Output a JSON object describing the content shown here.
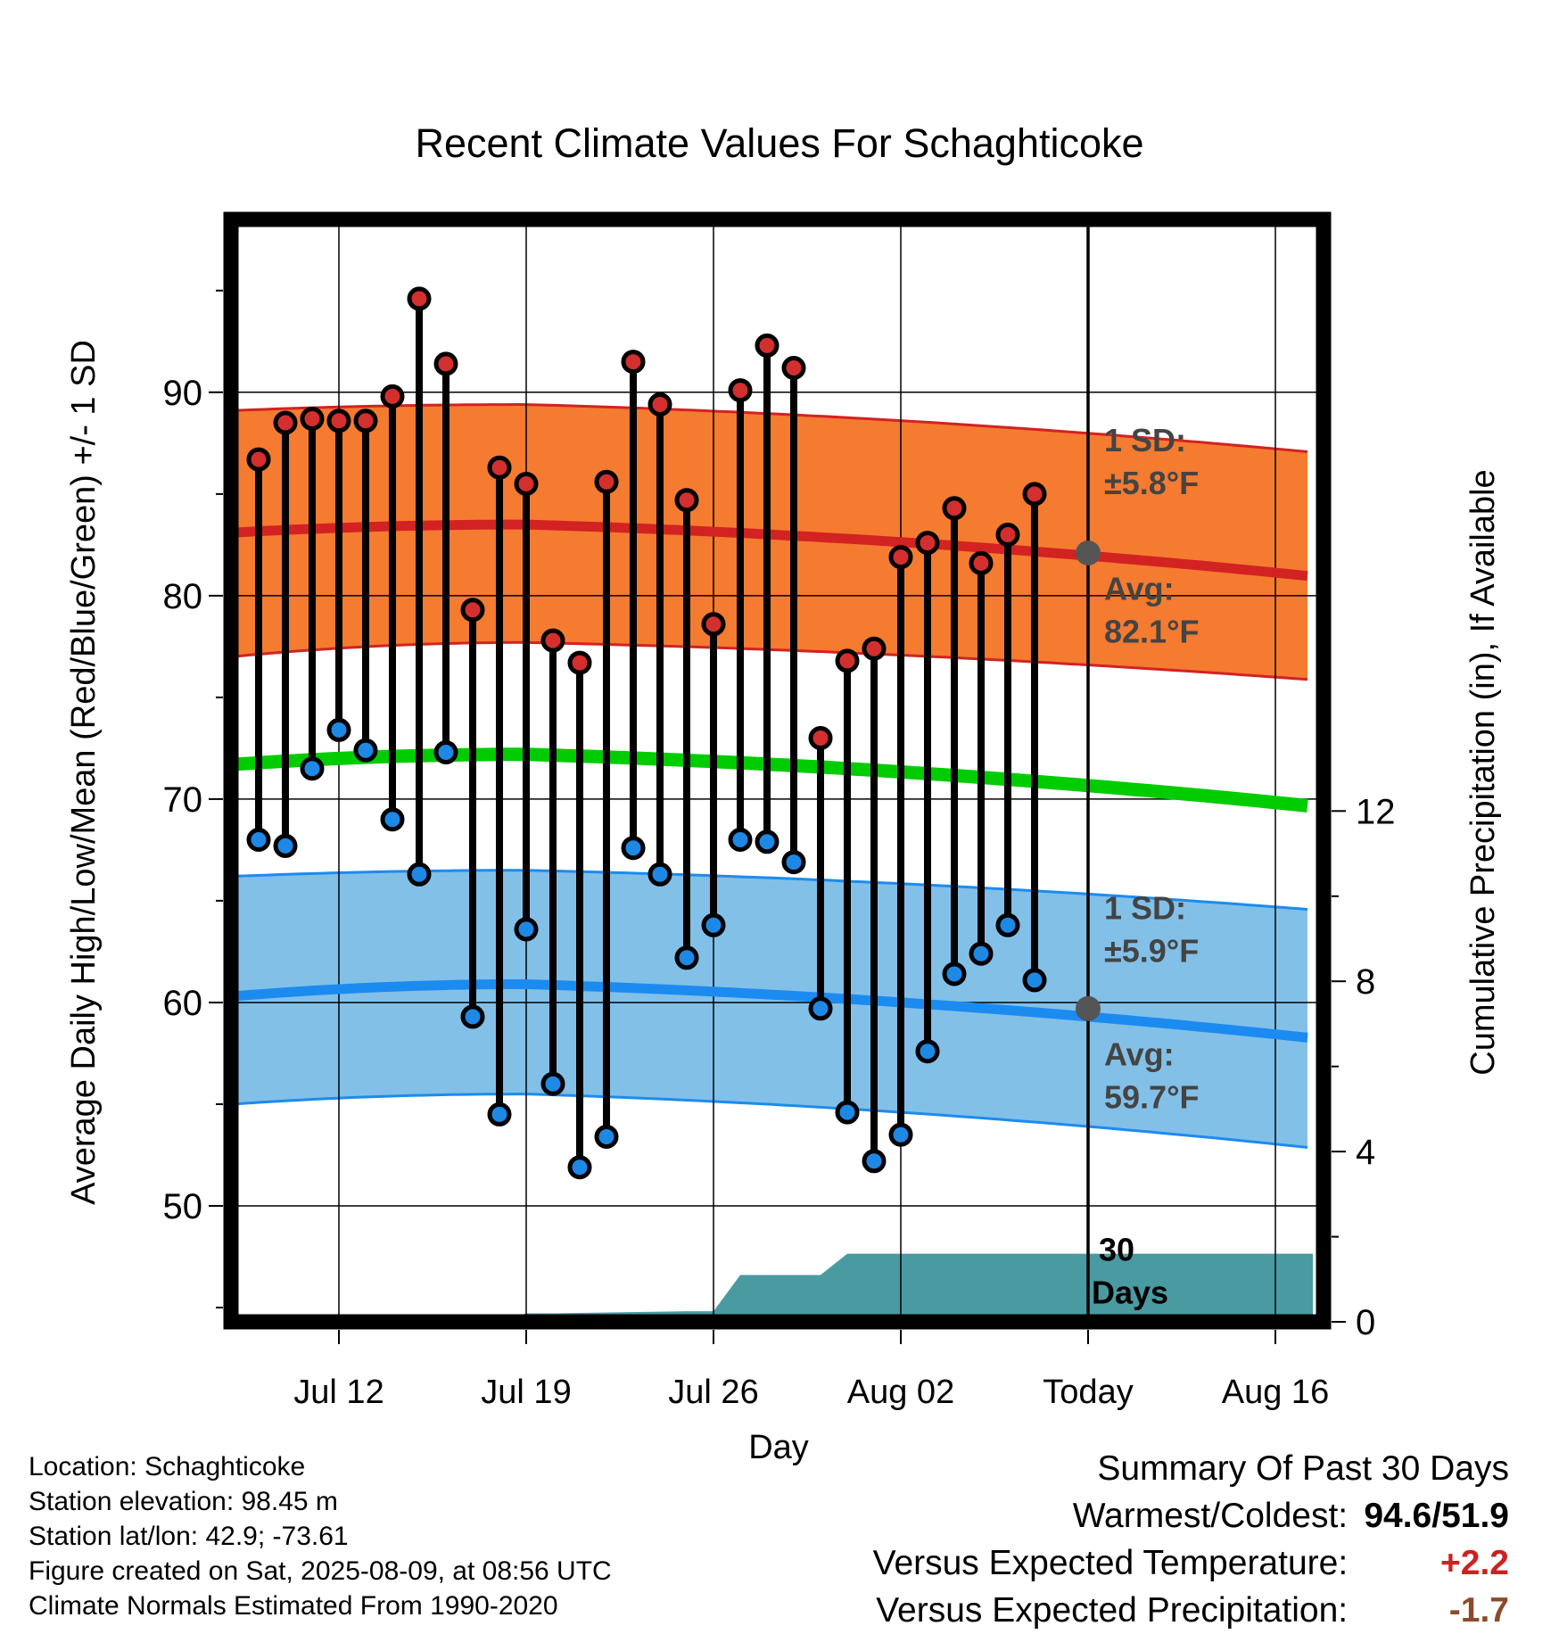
{
  "chart_data": {
    "type": "line",
    "title": "Recent Climate Values For Schaghticoke",
    "xlabel": "Day",
    "ylabel": "Average Daily High/Low/Mean (Red/Blue/Green) +/- 1 SD",
    "y2label": "Cumulative Precipitation (in), If Available",
    "x_start": "Jul 09",
    "x_end": "Aug 20",
    "x_ticks": [
      {
        "day": 3,
        "label": "Jul 12"
      },
      {
        "day": 10,
        "label": "Jul 19"
      },
      {
        "day": 17,
        "label": "Jul 26"
      },
      {
        "day": 24,
        "label": "Aug 02"
      },
      {
        "day": 31,
        "label": "Today"
      },
      {
        "day": 38,
        "label": "Aug 16"
      }
    ],
    "ylim": [
      44.3,
      98.5
    ],
    "y_ticks": [
      50,
      60,
      70,
      80,
      90
    ],
    "y2lim": [
      0,
      25.9
    ],
    "y2_ticks": [
      0,
      4,
      8,
      12
    ],
    "today_day": 31,
    "grid": true,
    "highs": [
      86.7,
      88.5,
      88.7,
      88.6,
      88.6,
      89.8,
      94.6,
      91.4,
      79.3,
      86.3,
      85.5,
      77.8,
      76.7,
      85.6,
      91.5,
      89.4,
      84.7,
      78.6,
      90.1,
      92.3,
      91.2,
      73.0,
      76.8,
      77.4,
      81.9,
      82.6,
      84.3,
      81.6,
      83.0,
      85.0
    ],
    "lows": [
      68.0,
      67.7,
      71.5,
      73.4,
      72.4,
      69.0,
      66.3,
      72.3,
      59.3,
      54.5,
      63.6,
      56.0,
      51.9,
      53.4,
      67.6,
      66.3,
      62.2,
      63.8,
      68.0,
      67.9,
      66.9,
      59.7,
      54.6,
      52.2,
      53.5,
      57.6,
      61.4,
      62.4,
      63.8,
      61.1
    ],
    "normal_high": {
      "start": 83.1,
      "peak": 83.5,
      "today": 82.1,
      "end": 81.0
    },
    "normal_high_sd": {
      "plus_start": 89.1,
      "plus_peak": 89.4,
      "plus_end": 87.1,
      "minus_start": 77.0,
      "minus_peak": 77.7,
      "minus_end": 75.9
    },
    "normal_low": {
      "start": 60.3,
      "peak": 60.9,
      "today": 59.7,
      "end": 58.3
    },
    "normal_low_sd": {
      "plus_start": 66.2,
      "plus_peak": 66.5,
      "plus_end": 64.6,
      "minus_start": 55.0,
      "minus_peak": 55.5,
      "minus_end": 52.9
    },
    "normal_mean": {
      "start": 71.7,
      "peak": 72.2,
      "end": 69.7
    },
    "precip_cumulative": {
      "days": [
        0,
        9,
        10,
        11,
        16,
        17,
        18,
        21,
        22,
        23,
        39
      ],
      "values": [
        0.0,
        0.0,
        0.2,
        0.2,
        0.25,
        0.25,
        1.1,
        1.1,
        1.6,
        1.6,
        1.6
      ]
    },
    "annotations": {
      "high_sd_label": "1 SD:",
      "high_sd_value": "±5.8°F",
      "high_avg_label": "Avg:",
      "high_avg_value": "82.1°F",
      "low_sd_label": "1 SD:",
      "low_sd_value": "±5.9°F",
      "low_avg_label": "Avg:",
      "low_avg_value": "59.7°F",
      "period_count": "30",
      "period_unit": "Days"
    },
    "colors": {
      "high_band": "#f47b30",
      "high_line": "#d32222",
      "low_band": "#82c0e8",
      "low_line": "#1c8bf0",
      "mean_line": "#00cc00",
      "precip": "#4a9aa1",
      "high_marker": "#d32f2f",
      "low_marker": "#1e88e5",
      "annotation_text": "#444444"
    }
  },
  "footer": {
    "location": "Location: Schaghticoke",
    "elevation": "Station elevation: 98.45 m",
    "latlon": "Station lat/lon: 42.9; -73.61",
    "created": "Figure created on Sat, 2025-08-09, at 08:56 UTC",
    "normals": "Climate Normals Estimated From 1990-2020"
  },
  "summary": {
    "title": "Summary Of Past 30 Days",
    "warm_cold_label": "Warmest/Coldest:",
    "warm_cold_value": "94.6/51.9",
    "temp_label": "Versus Expected Temperature:",
    "temp_value": "+2.2",
    "precip_label": "Versus Expected Precipitation:",
    "precip_value": "-1.7"
  }
}
